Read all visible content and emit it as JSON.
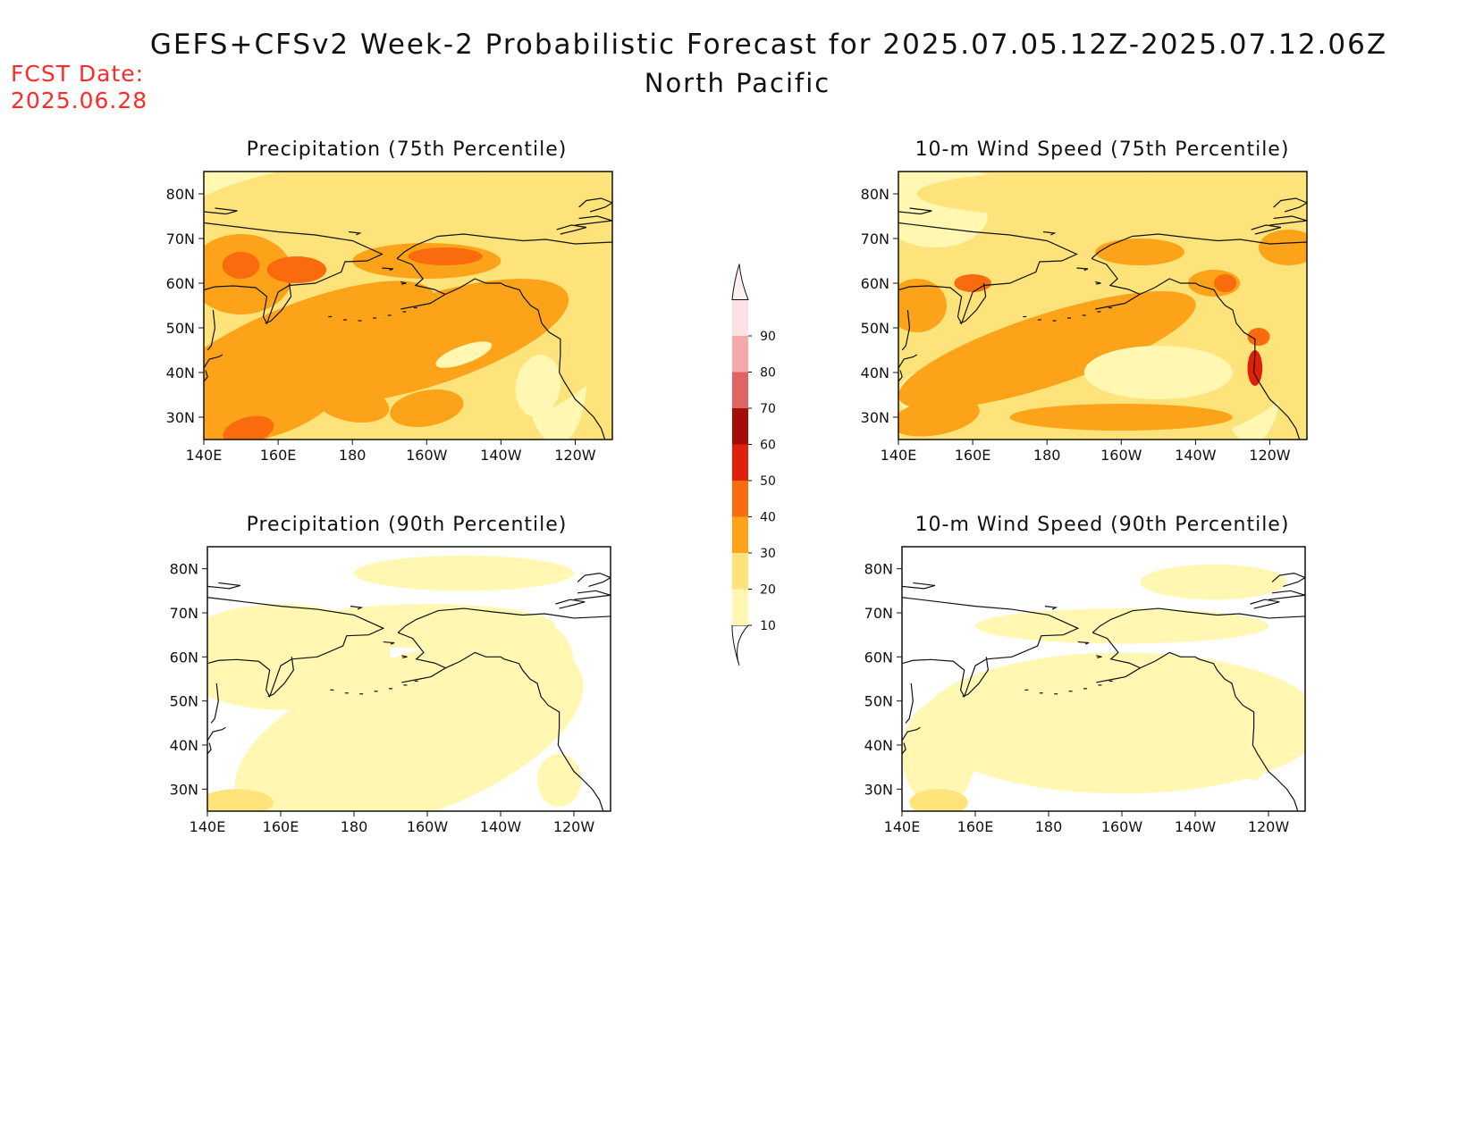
{
  "header": {
    "title": "GEFS+CFSv2 Week-2 Probabilistic Forecast for 2025.07.05.12Z-2025.07.12.06Z",
    "subtitle": "North Pacific",
    "fcst_label": "FCST Date:",
    "fcst_date": "2025.06.28"
  },
  "panels": [
    {
      "title": "Precipitation (75th Percentile)",
      "level": 2
    },
    {
      "title": "10-m Wind Speed (75th Percentile)",
      "level": 2
    },
    {
      "title": "Precipitation (90th Percentile)",
      "level": 1
    },
    {
      "title": "10-m Wind Speed (90th Percentile)",
      "level": 1
    }
  ],
  "axes": {
    "lon_labels": [
      "140E",
      "160E",
      "180",
      "160W",
      "140W",
      "120W"
    ],
    "lat_labels": [
      "80N",
      "70N",
      "60N",
      "50N",
      "40N",
      "30N"
    ]
  },
  "colorbar": {
    "levels": [
      "10",
      "20",
      "30",
      "40",
      "50",
      "60",
      "70",
      "80",
      "90"
    ],
    "colors": [
      "#fff7b2",
      "#fde37a",
      "#fca31a",
      "#f96b0c",
      "#e0200b",
      "#a50c05",
      "#e06464",
      "#f5a8aa",
      "#fde2e4"
    ]
  }
}
